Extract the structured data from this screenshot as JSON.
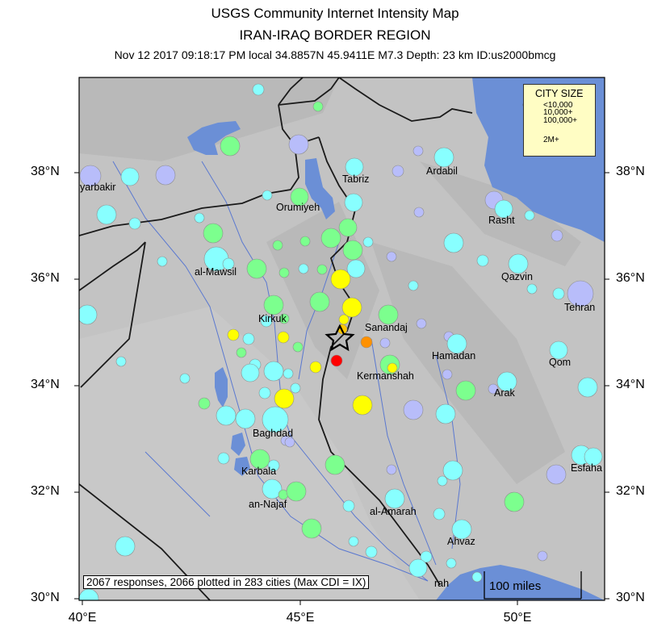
{
  "header": {
    "title": "USGS Community Internet Intensity Map",
    "region": "IRAN-IRAQ BORDER REGION",
    "event_line": "Nov 12 2017 09:18:17 PM local 34.8857N 45.9411E M7.3 Depth: 23 km ID:us2000bmcg"
  },
  "axes": {
    "lat_labels": [
      "38°N",
      "36°N",
      "34°N",
      "32°N",
      "30°N"
    ],
    "lon_labels": [
      "40°E",
      "45°E",
      "50°E"
    ]
  },
  "cities": [
    "yarbakir",
    "Tabriz",
    "Ardabil",
    "Orumiyeh",
    "Rasht",
    "al-Mawsil",
    "Qazvin",
    "Tehran",
    "Kirkuk",
    "Sanandaj",
    "Hamadan",
    "Kermanshah",
    "Qom",
    "Arak",
    "Baghdad",
    "Esfaha",
    "Karbala",
    "an-Najaf",
    "al-Amarah",
    "Ahvaz",
    "rah"
  ],
  "legend": {
    "title": "CITY SIZE",
    "items": [
      "<10,000",
      "10,000+",
      "100,000+",
      "2M+"
    ]
  },
  "summary": "2067 responses, 2066 plotted in 283 cities (Max CDI = IX)",
  "scale_bar": "100 miles",
  "colors": {
    "land": "#c3c3c3",
    "water": "#6b8fd6",
    "border": "#1a1a1a",
    "cdi_II_III": "#b8bdfa",
    "cdi_IV": "#88ffff",
    "cdi_V": "#7cff8e",
    "cdi_VI": "#ffff00",
    "cdi_VII": "#ffc800",
    "cdi_VIII": "#ff9100",
    "cdi_IX": "#ff0000"
  },
  "epicenter_icon": "star-icon"
}
